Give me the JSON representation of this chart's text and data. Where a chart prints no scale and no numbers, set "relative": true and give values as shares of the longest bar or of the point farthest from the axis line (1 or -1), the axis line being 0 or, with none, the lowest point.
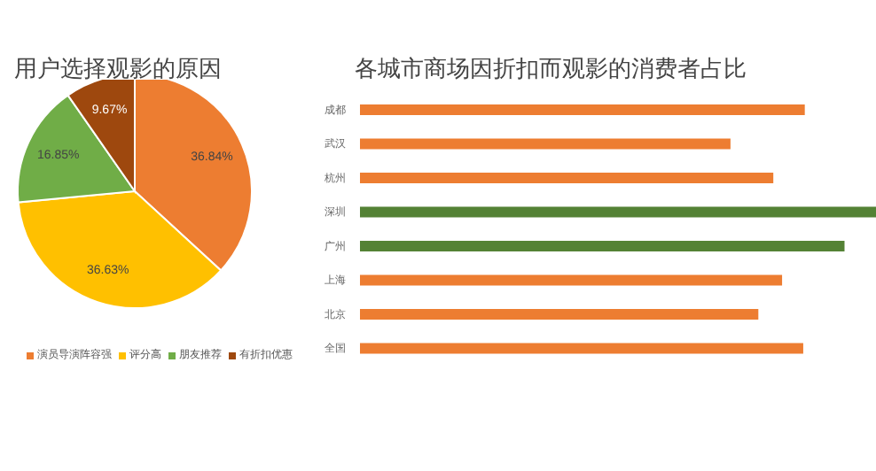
{
  "chart_data": [
    {
      "type": "pie",
      "title": "用户选择观影的原因",
      "categories": [
        "演员导演阵容强",
        "评分高",
        "朋友推荐",
        "有折扣优惠"
      ],
      "values": [
        36.84,
        36.63,
        16.85,
        9.67
      ],
      "colors": [
        "#ed7d31",
        "#ffc000",
        "#70ad47",
        "#9e480e"
      ],
      "value_labels": [
        "36.84%",
        "36.63%",
        "16.85%",
        "9.67%"
      ],
      "legend": "bottom"
    },
    {
      "type": "bar",
      "orientation": "horizontal",
      "relative": true,
      "title": "各城市商场因折扣而观影的消费者占比",
      "categories": [
        "成都",
        "武汉",
        "杭州",
        "深圳",
        "广州",
        "上海",
        "北京",
        "全国"
      ],
      "values": [
        0.862,
        0.718,
        0.801,
        1,
        0.939,
        0.818,
        0.772,
        0.859
      ],
      "colors": [
        "#ed7d31",
        "#ed7d31",
        "#ed7d31",
        "#548235",
        "#548235",
        "#ed7d31",
        "#ed7d31",
        "#ed7d31"
      ]
    }
  ]
}
